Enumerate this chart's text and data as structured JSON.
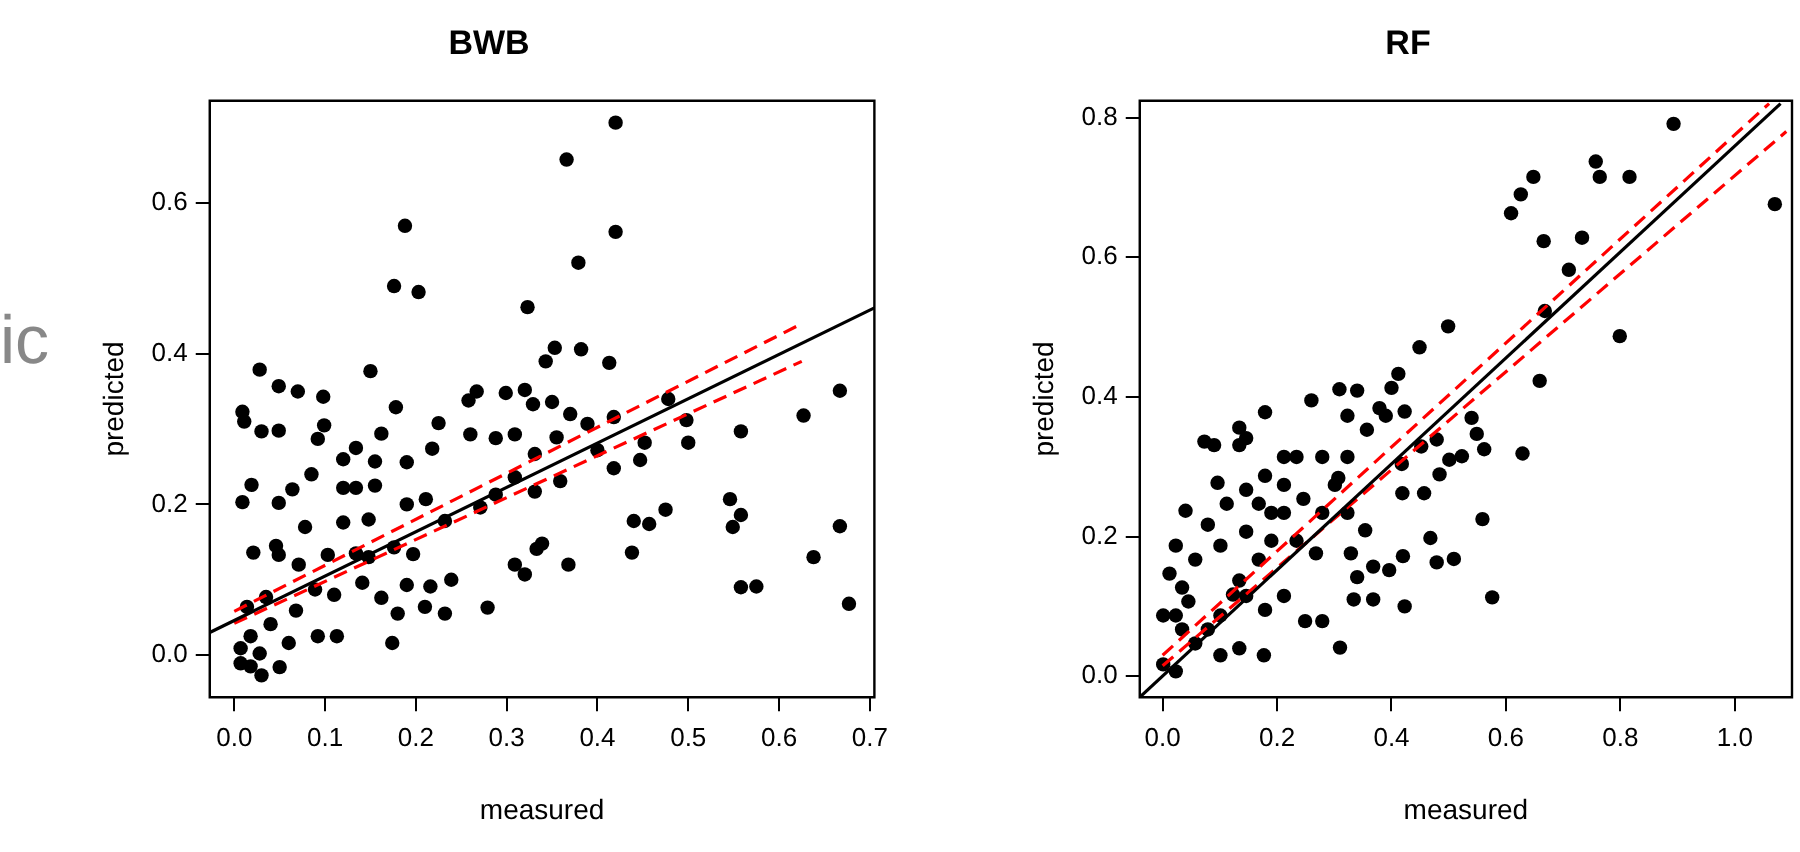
{
  "chart_data": [
    {
      "type": "scatter",
      "title": "BWB",
      "xlabel": "measured",
      "ylabel": "predicted",
      "annotations": [
        "ic"
      ],
      "grid": false,
      "legend": false,
      "xlim": [
        -0.027,
        0.705
      ],
      "ylim": [
        -0.056,
        0.736
      ],
      "xticks": [
        {
          "value": 0,
          "label": "0.0"
        },
        {
          "value": 0.1,
          "label": "0.1"
        },
        {
          "value": 0.2,
          "label": "0.2"
        },
        {
          "value": 0.3,
          "label": "0.3"
        },
        {
          "value": 0.4,
          "label": "0.4"
        },
        {
          "value": 0.5,
          "label": "0.5"
        },
        {
          "value": 0.6,
          "label": "0.6"
        },
        {
          "value": 0.7,
          "label": "0.7"
        }
      ],
      "yticks": [
        {
          "value": 0,
          "label": "0.0"
        },
        {
          "value": 0.2,
          "label": "0.2"
        },
        {
          "value": 0.4,
          "label": "0.4"
        },
        {
          "value": 0.6,
          "label": "0.6"
        }
      ],
      "series": [
        {
          "marker": "circle",
          "color": "#000000",
          "x": [
            0.42,
            0.366,
            0.42,
            0.379,
            0.188,
            0.176,
            0.203,
            0.323,
            0.353,
            0.382,
            0.343,
            0.413,
            0.667,
            0.627,
            0.558,
            0.478,
            0.546,
            0.558,
            0.549,
            0.667,
            0.638,
            0.677,
            0.558,
            0.575,
            0.475,
            0.457,
            0.44,
            0.438,
            0.368,
            0.32,
            0.309,
            0.333,
            0.339,
            0.279,
            0.174,
            0.18,
            0.21,
            0.232,
            0.239,
            0.216,
            0.19,
            0.028,
            0.009,
            0.011,
            0.03,
            0.049,
            0.049,
            0.07,
            0.098,
            0.15,
            0.009,
            0.019,
            0.049,
            0.178,
            0.225,
            0.258,
            0.267,
            0.299,
            0.32,
            0.329,
            0.35,
            0.37,
            0.389,
            0.418,
            0.498,
            0.5,
            0.452,
            0.447,
            0.418,
            0.4,
            0.355,
            0.331,
            0.359,
            0.331,
            0.309,
            0.288,
            0.271,
            0.26,
            0.288,
            0.309,
            0.218,
            0.19,
            0.19,
            0.211,
            0.232,
            0.197,
            0.176,
            0.007,
            0.018,
            0.028,
            0.05,
            0.06,
            0.04,
            0.068,
            0.089,
            0.103,
            0.12,
            0.134,
            0.155,
            0.085,
            0.064,
            0.092,
            0.099,
            0.12,
            0.134,
            0.155,
            0.148,
            0.134,
            0.11,
            0.092,
            0.113,
            0.071,
            0.049,
            0.035,
            0.014,
            0.078,
            0.12,
            0.162,
            0.141,
            0.162,
            0.148,
            0.046,
            0.021,
            0.018,
            0.007,
            0.03
          ],
          "values": [
            0.707,
            0.658,
            0.562,
            0.521,
            0.57,
            0.49,
            0.482,
            0.462,
            0.408,
            0.406,
            0.39,
            0.388,
            0.351,
            0.318,
            0.297,
            0.34,
            0.207,
            0.186,
            0.17,
            0.171,
            0.13,
            0.068,
            0.09,
            0.091,
            0.193,
            0.174,
            0.178,
            0.136,
            0.12,
            0.107,
            0.12,
            0.141,
            0.148,
            0.063,
            0.016,
            0.055,
            0.064,
            0.055,
            0.1,
            0.091,
            0.093,
            0.379,
            0.323,
            0.31,
            0.297,
            0.298,
            0.357,
            0.35,
            0.343,
            0.377,
            0.203,
            0.226,
            0.202,
            0.329,
            0.308,
            0.338,
            0.35,
            0.348,
            0.352,
            0.333,
            0.336,
            0.32,
            0.307,
            0.316,
            0.312,
            0.282,
            0.282,
            0.259,
            0.248,
            0.272,
            0.289,
            0.267,
            0.231,
            0.217,
            0.236,
            0.213,
            0.196,
            0.293,
            0.288,
            0.293,
            0.274,
            0.256,
            0.2,
            0.207,
            0.178,
            0.134,
            0.143,
            0.009,
            -0.015,
            0.002,
            -0.016,
            0.016,
            0.041,
            0.059,
            0.087,
            0.133,
            0.176,
            0.222,
            0.257,
            0.24,
            0.22,
            0.287,
            0.305,
            0.26,
            0.275,
            0.225,
            0.18,
            0.135,
            0.08,
            0.025,
            0.025,
            0.12,
            0.133,
            0.077,
            0.064,
            0.17,
            0.222,
            0.294,
            0.096,
            0.076,
            0.13,
            0.145,
            0.136,
            0.025,
            -0.011,
            -0.027
          ]
        },
        {
          "type": "line",
          "color": "#000000",
          "x": [
            -0.027,
            0.705
          ],
          "values": [
            0.03,
            0.461
          ]
        },
        {
          "type": "line",
          "color": "#ff0000",
          "line_style": "dashed",
          "x": [
            0.0,
            0.625
          ],
          "values": [
            0.058,
            0.44
          ]
        },
        {
          "type": "line",
          "color": "#ff0000",
          "line_style": "dashed",
          "x": [
            0.0,
            0.625
          ],
          "values": [
            0.042,
            0.39
          ]
        }
      ]
    },
    {
      "type": "scatter",
      "title": "RF",
      "xlabel": "measured",
      "ylabel": "predicted",
      "grid": false,
      "legend": false,
      "xlim": [
        -0.04,
        1.1
      ],
      "ylim": [
        -0.03,
        0.824
      ],
      "xticks": [
        {
          "value": 0,
          "label": "0.0"
        },
        {
          "value": 0.2,
          "label": "0.2"
        },
        {
          "value": 0.4,
          "label": "0.4"
        },
        {
          "value": 0.6,
          "label": "0.6"
        },
        {
          "value": 0.8,
          "label": "0.8"
        },
        {
          "value": 1,
          "label": "1.0"
        }
      ],
      "yticks": [
        {
          "value": 0,
          "label": "0.0"
        },
        {
          "value": 0.2,
          "label": "0.2"
        },
        {
          "value": 0.4,
          "label": "0.4"
        },
        {
          "value": 0.6,
          "label": "0.6"
        },
        {
          "value": 0.8,
          "label": "0.8"
        }
      ],
      "series": [
        {
          "marker": "circle",
          "color": "#000000",
          "x": [
            0.893,
            1.07,
            0.757,
            0.764,
            0.816,
            0.648,
            0.626,
            0.609,
            0.666,
            0.733,
            0.71,
            0.668,
            0.799,
            0.659,
            0.629,
            0.499,
            0.449,
            0.576,
            0.559,
            0.509,
            0.479,
            0.468,
            0.54,
            0.549,
            0.562,
            0.523,
            0.501,
            0.484,
            0.479,
            0.452,
            0.457,
            0.419,
            0.418,
            0.423,
            0.412,
            0.379,
            0.4,
            0.34,
            0.31,
            0.279,
            0.249,
            0.334,
            0.368,
            0.423,
            0.396,
            0.368,
            0.42,
            0.34,
            0.329,
            0.354,
            0.323,
            0.307,
            0.279,
            0.323,
            0.309,
            0.26,
            0.179,
            0.177,
            0.234,
            0.212,
            0.19,
            0.212,
            0.179,
            0.146,
            0.073,
            0.09,
            0.134,
            0.134,
            0.04,
            0.012,
            0.001,
            0.001,
            0.023,
            0.057,
            0.101,
            0.134,
            0.168,
            0.057,
            0.034,
            0.079,
            0.112,
            0.146,
            0.179,
            0.212,
            0.146,
            0.101,
            0.123,
            0.079,
            0.034,
            0.023,
            0.096,
            0.146,
            0.212,
            0.246,
            0.279,
            0.268,
            0.19,
            0.234,
            0.168,
            0.134,
            0.101,
            0.023,
            0.045,
            0.301,
            0.323,
            0.357,
            0.39
          ],
          "values": [
            0.791,
            0.676,
            0.737,
            0.715,
            0.715,
            0.715,
            0.69,
            0.663,
            0.623,
            0.628,
            0.582,
            0.523,
            0.487,
            0.423,
            0.319,
            0.501,
            0.471,
            0.113,
            0.225,
            0.168,
            0.163,
            0.198,
            0.37,
            0.347,
            0.325,
            0.315,
            0.31,
            0.289,
            0.339,
            0.329,
            0.262,
            0.262,
            0.304,
            0.379,
            0.433,
            0.384,
            0.413,
            0.409,
            0.041,
            0.079,
            0.079,
            0.11,
            0.11,
            0.1,
            0.152,
            0.157,
            0.172,
            0.142,
            0.176,
            0.209,
            0.234,
            0.284,
            0.314,
            0.373,
            0.411,
            0.395,
            0.378,
            0.03,
            0.314,
            0.234,
            0.194,
            0.115,
            0.095,
            0.115,
            0.336,
            0.331,
            0.356,
            0.331,
            0.237,
            0.147,
            0.087,
            0.017,
            0.007,
            0.047,
            0.087,
            0.137,
            0.167,
            0.167,
            0.127,
            0.217,
            0.247,
            0.267,
            0.287,
            0.314,
            0.207,
            0.187,
            0.117,
            0.067,
            0.067,
            0.187,
            0.277,
            0.341,
            0.274,
            0.254,
            0.234,
            0.176,
            0.234,
            0.194,
            0.247,
            0.04,
            0.03,
            0.087,
            0.107,
            0.274,
            0.314,
            0.353,
            0.373
          ]
        },
        {
          "type": "line",
          "color": "#000000",
          "x": [
            -0.04,
            1.08
          ],
          "values": [
            -0.03,
            0.82
          ]
        },
        {
          "type": "line",
          "color": "#ff0000",
          "line_style": "dashed",
          "x": [
            0.0,
            1.06
          ],
          "values": [
            0.03,
            0.82
          ]
        },
        {
          "type": "line",
          "color": "#ff0000",
          "line_style": "dashed",
          "x": [
            0.0,
            1.09
          ],
          "values": [
            0.015,
            0.78
          ]
        }
      ]
    }
  ]
}
